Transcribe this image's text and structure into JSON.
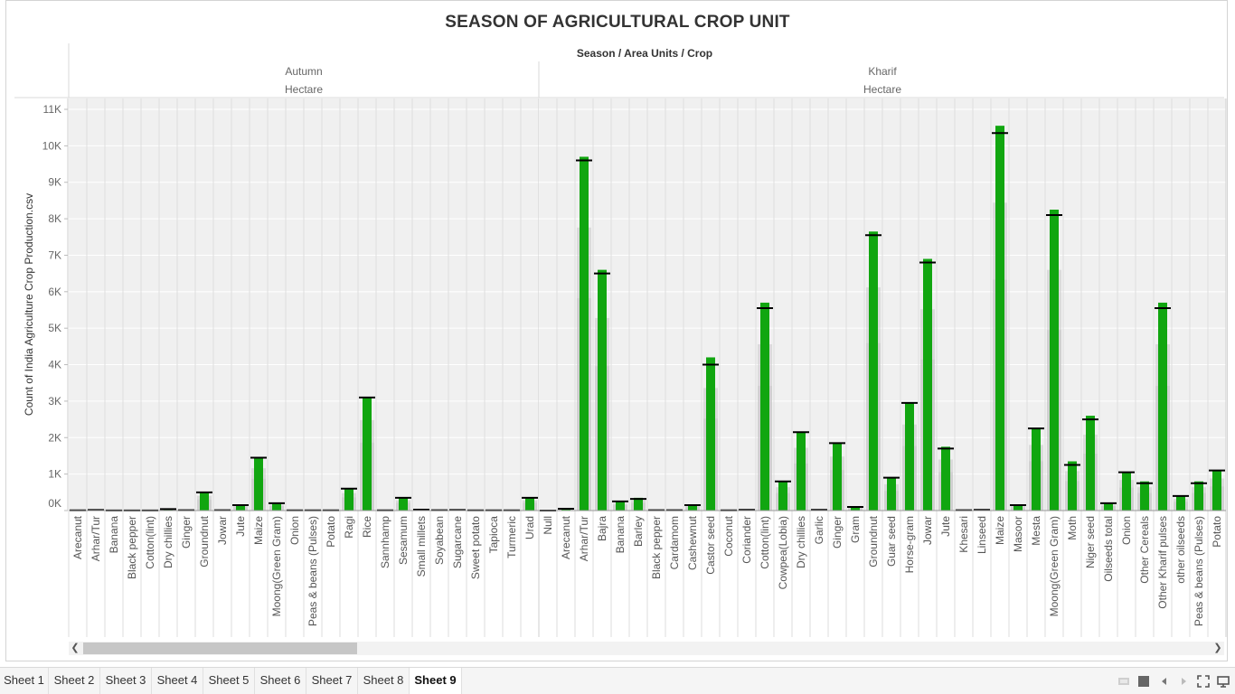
{
  "title": "SEASON OF AGRICULTURAL CROP UNIT",
  "header": "Season  /  Area Units  /  Crop",
  "y_axis_title": "Count of India Agriculture Crop Production.csv",
  "panes": [
    {
      "season": "Autumn",
      "unit": "Hectare"
    },
    {
      "season": "Kharif",
      "unit": "Hectare"
    }
  ],
  "tabs": [
    "Sheet 1",
    "Sheet 2",
    "Sheet 3",
    "Sheet 4",
    "Sheet 5",
    "Sheet 6",
    "Sheet 7",
    "Sheet 8",
    "Sheet 9"
  ],
  "active_tab": "Sheet 9",
  "colors": {
    "bar": "#11a610",
    "reference_line": "#000000",
    "pane_bg": "#f0f0f0",
    "band": "#c9c9c9",
    "grid": "#ffffff"
  },
  "chart_data": {
    "type": "bar",
    "ylim": [
      0,
      11000
    ],
    "yticks": [
      0,
      1000,
      2000,
      3000,
      4000,
      5000,
      6000,
      7000,
      8000,
      9000,
      10000,
      11000
    ],
    "ytick_labels": [
      "0K",
      "1K",
      "2K",
      "3K",
      "4K",
      "5K",
      "6K",
      "7K",
      "8K",
      "9K",
      "10K",
      "11K"
    ],
    "groups": [
      {
        "season": "Autumn",
        "unit": "Hectare",
        "categories": [
          "Arecanut",
          "Arhar/Tur",
          "Banana",
          "Black pepper",
          "Cotton(lint)",
          "Dry chillies",
          "Ginger",
          "Groundnut",
          "Jowar",
          "Jute",
          "Maize",
          "Moong(Green Gram)",
          "Onion",
          "Peas & beans (Pulses)",
          "Potato",
          "Ragi",
          "Rice",
          "Sannhamp",
          "Sesamum",
          "Small millets",
          "Soyabean",
          "Sugarcane",
          "Sweet potato",
          "Tapioca",
          "Turmeric",
          "Urad"
        ],
        "values": [
          5,
          15,
          3,
          3,
          3,
          40,
          10,
          500,
          10,
          150,
          1450,
          200,
          5,
          5,
          5,
          600,
          3100,
          5,
          350,
          25,
          10,
          15,
          5,
          5,
          5,
          350
        ],
        "reference_line": [
          5,
          15,
          3,
          3,
          3,
          40,
          10,
          500,
          10,
          150,
          1450,
          200,
          5,
          5,
          5,
          600,
          3100,
          5,
          350,
          25,
          10,
          15,
          5,
          5,
          5,
          350
        ]
      },
      {
        "season": "Kharif",
        "unit": "Hectare",
        "categories": [
          "Null",
          "Arecanut",
          "Arhar/Tur",
          "Bajra",
          "Banana",
          "Barley",
          "Black pepper",
          "Cardamom",
          "Cashewnut",
          "Castor seed",
          "Coconut",
          "Coriander",
          "Cotton(lint)",
          "Cowpea(Lobia)",
          "Dry chillies",
          "Garlic",
          "Ginger",
          "Gram",
          "Groundnut",
          "Guar seed",
          "Horse-gram",
          "Jowar",
          "Jute",
          "Khesari",
          "Linseed",
          "Maize",
          "Masoor",
          "Mesta",
          "Moong(Green Gram)",
          "Moth",
          "Niger seed",
          "Oilseeds total",
          "Onion",
          "Other Cereals",
          "Other Kharif pulses",
          "other oilseeds",
          "Peas & beans (Pulses)",
          "Potato"
        ],
        "values": [
          0,
          50,
          9700,
          6600,
          250,
          350,
          10,
          10,
          150,
          4200,
          5,
          20,
          5700,
          800,
          2150,
          20,
          1850,
          100,
          7650,
          900,
          2950,
          6900,
          1750,
          10,
          20,
          10550,
          150,
          2250,
          8250,
          1350,
          2600,
          200,
          1050,
          800,
          5700,
          400,
          800,
          1100
        ],
        "reference_line": [
          0,
          50,
          9600,
          6500,
          250,
          320,
          10,
          10,
          150,
          4000,
          5,
          20,
          5550,
          800,
          2150,
          20,
          1850,
          100,
          7550,
          900,
          2950,
          6800,
          1700,
          10,
          20,
          10350,
          150,
          2250,
          8100,
          1250,
          2500,
          200,
          1050,
          750,
          5550,
          400,
          750,
          1100
        ]
      }
    ]
  }
}
